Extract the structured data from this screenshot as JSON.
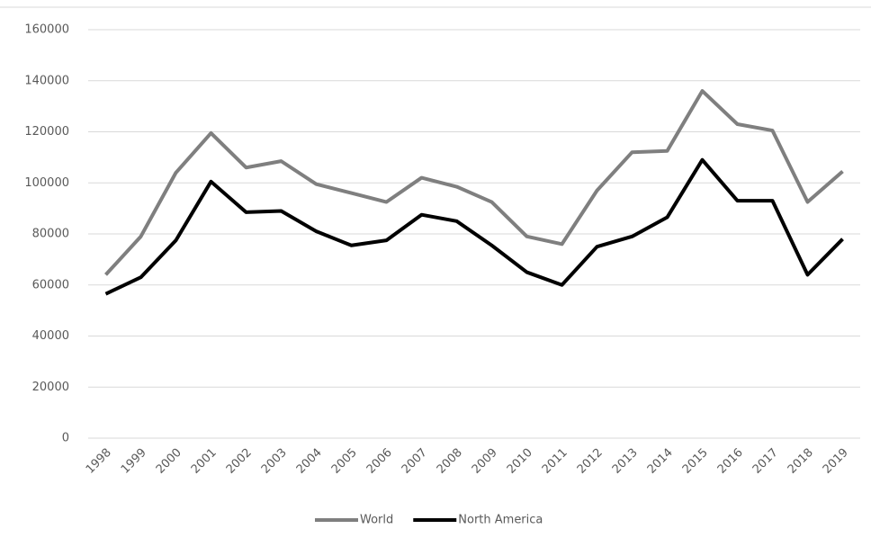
{
  "chart_data": {
    "type": "line",
    "categories": [
      "1998",
      "1999",
      "2000",
      "2001",
      "2002",
      "2003",
      "2004",
      "2005",
      "2006",
      "2007",
      "2008",
      "2009",
      "2010",
      "2011",
      "2012",
      "2013",
      "2014",
      "2015",
      "2016",
      "2017",
      "2018",
      "2019"
    ],
    "series": [
      {
        "name": "World",
        "color": "#7f7f7f",
        "values": [
          64000,
          79000,
          104000,
          119500,
          106000,
          108500,
          99500,
          96000,
          92500,
          102000,
          98500,
          92500,
          79000,
          76000,
          97000,
          112000,
          112500,
          136000,
          123000,
          120500,
          92500,
          104500
        ]
      },
      {
        "name": "North America",
        "color": "#000000",
        "values": [
          56500,
          63000,
          77500,
          100500,
          88500,
          89000,
          81000,
          75500,
          77500,
          87500,
          85000,
          75500,
          65000,
          60000,
          75000,
          79000,
          86500,
          109000,
          93000,
          93000,
          64000,
          78000
        ]
      }
    ],
    "ylim": [
      0,
      160000
    ],
    "yticks": [
      0,
      20000,
      40000,
      60000,
      80000,
      100000,
      120000,
      140000,
      160000
    ],
    "grid": true,
    "legend": "bottom"
  }
}
